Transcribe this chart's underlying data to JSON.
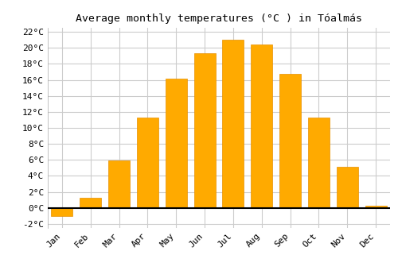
{
  "title": "Average monthly temperatures (°C ) in Tóalmás",
  "months": [
    "Jan",
    "Feb",
    "Mar",
    "Apr",
    "May",
    "Jun",
    "Jul",
    "Aug",
    "Sep",
    "Oct",
    "Nov",
    "Dec"
  ],
  "values": [
    -1.0,
    1.3,
    5.9,
    11.3,
    16.2,
    19.3,
    21.0,
    20.4,
    16.7,
    11.3,
    5.1,
    0.3
  ],
  "bar_color": "#FFAA00",
  "bar_edge_color": "#E89000",
  "background_color": "#ffffff",
  "grid_color": "#cccccc",
  "ylim": [
    -2.5,
    22.5
  ],
  "yticks": [
    -2,
    0,
    2,
    4,
    6,
    8,
    10,
    12,
    14,
    16,
    18,
    20,
    22
  ],
  "title_fontsize": 9.5,
  "tick_fontsize": 8,
  "bar_width": 0.75
}
